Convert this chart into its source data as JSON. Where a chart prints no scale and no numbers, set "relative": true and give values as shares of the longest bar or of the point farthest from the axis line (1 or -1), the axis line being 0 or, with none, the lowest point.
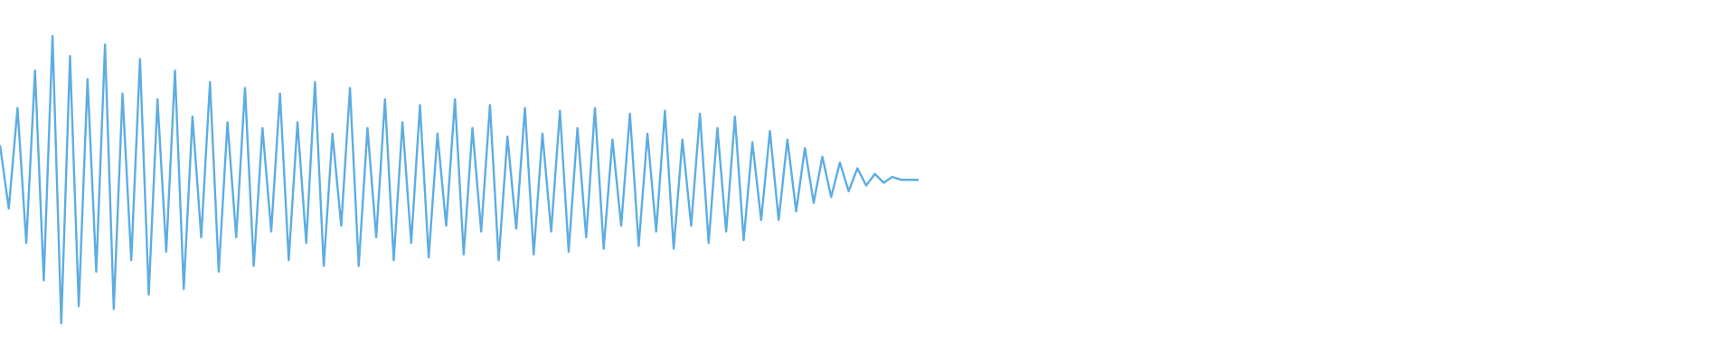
{
  "chart_data": {
    "type": "line",
    "relative": true,
    "color": "#5dade2",
    "categories": [
      null,
      null,
      null,
      null,
      null,
      null,
      null,
      null,
      null,
      null,
      null,
      null,
      null,
      null,
      null,
      null,
      null,
      null,
      null,
      null,
      null,
      null,
      null,
      null,
      null,
      null,
      null,
      null,
      null,
      null,
      null,
      null,
      null,
      null,
      null,
      null,
      null,
      null,
      null,
      null,
      null,
      null,
      null,
      null,
      null,
      null,
      null,
      null,
      null,
      null,
      null,
      null,
      null,
      null,
      null,
      null,
      null,
      null,
      null,
      null,
      null,
      null,
      null,
      null,
      null,
      null,
      null,
      null,
      null,
      null,
      null,
      null,
      null,
      null,
      null,
      null,
      null,
      null,
      null,
      null,
      null,
      null,
      null,
      null,
      null,
      null,
      null,
      null,
      null,
      null,
      null,
      null,
      null,
      null,
      null,
      null,
      null,
      null,
      null,
      null,
      null,
      null,
      null,
      null,
      null,
      null
    ],
    "values": [
      0.62,
      0.4,
      0.75,
      0.28,
      0.88,
      0.15,
      1.0,
      0.0,
      0.93,
      0.06,
      0.85,
      0.18,
      0.97,
      0.05,
      0.8,
      0.22,
      0.92,
      0.1,
      0.78,
      0.25,
      0.88,
      0.12,
      0.72,
      0.3,
      0.84,
      0.18,
      0.7,
      0.3,
      0.82,
      0.2,
      0.68,
      0.32,
      0.8,
      0.22,
      0.7,
      0.28,
      0.84,
      0.2,
      0.66,
      0.34,
      0.82,
      0.2,
      0.68,
      0.3,
      0.78,
      0.22,
      0.7,
      0.28,
      0.76,
      0.23,
      0.66,
      0.34,
      0.78,
      0.24,
      0.68,
      0.32,
      0.76,
      0.22,
      0.65,
      0.33,
      0.75,
      0.24,
      0.66,
      0.32,
      0.74,
      0.25,
      0.68,
      0.3,
      0.75,
      0.26,
      0.64,
      0.34,
      0.73,
      0.27,
      0.66,
      0.32,
      0.74,
      0.26,
      0.64,
      0.34,
      0.73,
      0.28,
      0.68,
      0.32,
      0.72,
      0.29,
      0.63,
      0.36,
      0.67,
      0.36,
      0.64,
      0.39,
      0.61,
      0.42,
      0.58,
      0.44,
      0.56,
      0.46,
      0.54,
      0.48,
      0.52,
      0.49,
      0.51,
      0.5,
      0.5,
      0.5
    ]
  }
}
